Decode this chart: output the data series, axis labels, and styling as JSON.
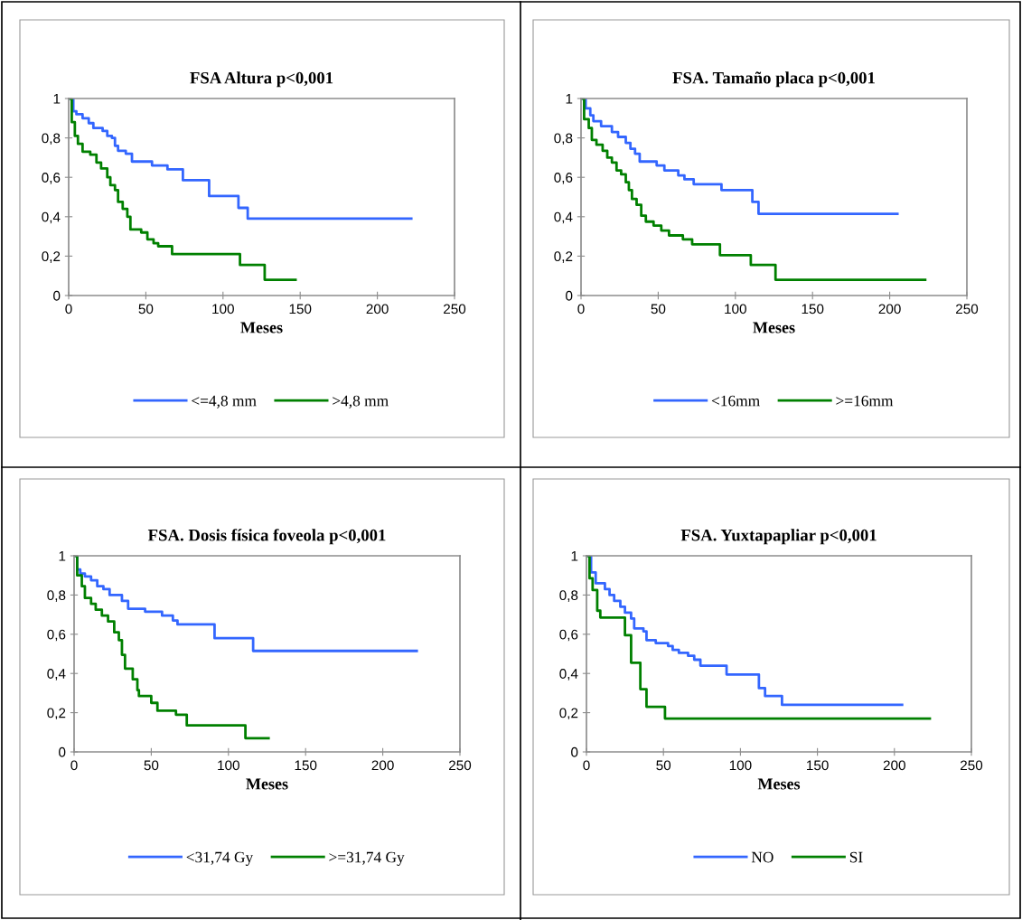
{
  "chart_data": [
    {
      "type": "step",
      "title": "FSA Altura p<0,001",
      "xlabel": "Meses",
      "legend": "bottom",
      "grid": false,
      "xlim": [
        0,
        250
      ],
      "xticks": [
        0,
        50,
        100,
        150,
        200,
        250
      ],
      "ylim": [
        0,
        1
      ],
      "yticks": [
        {
          "value": 0,
          "label": "0"
        },
        {
          "value": 0.2,
          "label": "0,2"
        },
        {
          "value": 0.4,
          "label": "0,4"
        },
        {
          "value": 0.6,
          "label": "0,6"
        },
        {
          "value": 0.8,
          "label": "0,8"
        },
        {
          "value": 1,
          "label": "1"
        }
      ],
      "series": [
        {
          "name": "<=4,8 mm",
          "color": "#3366ff",
          "x": [
            0,
            3,
            5,
            9,
            13,
            16,
            22,
            25,
            28,
            30,
            32,
            37,
            41,
            54,
            64,
            74,
            91,
            110,
            116,
            222
          ],
          "values": [
            1,
            0.935,
            0.92,
            0.9,
            0.875,
            0.85,
            0.835,
            0.81,
            0.8,
            0.76,
            0.735,
            0.72,
            0.68,
            0.66,
            0.64,
            0.585,
            0.505,
            0.445,
            0.39,
            0.39
          ]
        },
        {
          "name": ">4,8 mm",
          "color": "#008000",
          "x": [
            0,
            2,
            4,
            6,
            9,
            14,
            18,
            21,
            25,
            27,
            30,
            32,
            35,
            38,
            40,
            47,
            51,
            55,
            58,
            67,
            111,
            127,
            147
          ],
          "values": [
            1,
            0.88,
            0.81,
            0.77,
            0.73,
            0.715,
            0.675,
            0.645,
            0.6,
            0.56,
            0.535,
            0.475,
            0.44,
            0.4,
            0.335,
            0.32,
            0.285,
            0.265,
            0.25,
            0.21,
            0.155,
            0.08,
            0.08
          ]
        }
      ]
    },
    {
      "type": "step",
      "title": "FSA. Tamaño placa p<0,001",
      "xlabel": "Meses",
      "legend": "bottom",
      "grid": false,
      "xlim": [
        0,
        250
      ],
      "xticks": [
        0,
        50,
        100,
        150,
        200,
        250
      ],
      "ylim": [
        0,
        1
      ],
      "yticks": [
        {
          "value": 0,
          "label": "0"
        },
        {
          "value": 0.2,
          "label": "0,2"
        },
        {
          "value": 0.4,
          "label": "0,4"
        },
        {
          "value": 0.6,
          "label": "0,6"
        },
        {
          "value": 0.8,
          "label": "0,8"
        },
        {
          "value": 1,
          "label": "1"
        }
      ],
      "series": [
        {
          "name": "<16mm",
          "color": "#3366ff",
          "x": [
            0,
            3,
            6,
            8,
            13,
            20,
            24,
            29,
            32,
            35,
            38,
            49,
            54,
            63,
            67,
            73,
            91,
            111,
            115,
            205
          ],
          "values": [
            1,
            0.95,
            0.915,
            0.885,
            0.86,
            0.83,
            0.805,
            0.775,
            0.745,
            0.72,
            0.68,
            0.66,
            0.635,
            0.61,
            0.59,
            0.565,
            0.535,
            0.475,
            0.415,
            0.415
          ]
        },
        {
          "name": ">=16mm",
          "color": "#008000",
          "x": [
            0,
            2,
            5,
            7,
            10,
            14,
            17,
            20,
            23,
            26,
            29,
            31,
            33,
            36,
            39,
            42,
            47,
            52,
            57,
            66,
            72,
            90,
            110,
            126,
            223
          ],
          "values": [
            1,
            0.895,
            0.85,
            0.79,
            0.765,
            0.735,
            0.7,
            0.675,
            0.635,
            0.615,
            0.575,
            0.535,
            0.49,
            0.46,
            0.405,
            0.375,
            0.355,
            0.33,
            0.305,
            0.285,
            0.26,
            0.205,
            0.155,
            0.08,
            0.08
          ]
        }
      ]
    },
    {
      "type": "step",
      "title": "FSA. Dosis física foveola p<0,001",
      "xlabel": "Meses",
      "legend": "bottom",
      "grid": false,
      "xlim": [
        0,
        250
      ],
      "xticks": [
        0,
        50,
        100,
        150,
        200,
        250
      ],
      "ylim": [
        0,
        1
      ],
      "yticks": [
        {
          "value": 0,
          "label": "0"
        },
        {
          "value": 0.2,
          "label": "0,2"
        },
        {
          "value": 0.4,
          "label": "0,4"
        },
        {
          "value": 0.6,
          "label": "0,6"
        },
        {
          "value": 0.8,
          "label": "0,8"
        },
        {
          "value": 1,
          "label": "1"
        }
      ],
      "series": [
        {
          "name": "<31,74 Gy",
          "color": "#3366ff",
          "x": [
            0,
            2,
            4,
            7,
            11,
            15,
            19,
            23,
            31,
            35,
            46,
            57,
            64,
            67,
            91,
            116,
            222
          ],
          "values": [
            1,
            0.93,
            0.91,
            0.895,
            0.875,
            0.845,
            0.83,
            0.8,
            0.77,
            0.73,
            0.715,
            0.695,
            0.67,
            0.65,
            0.58,
            0.515,
            0.515
          ]
        },
        {
          "name": ">=31,74 Gy",
          "color": "#008000",
          "x": [
            0,
            2,
            5,
            7,
            11,
            14,
            18,
            22,
            26,
            29,
            31,
            33,
            38,
            41,
            42,
            50,
            54,
            66,
            73,
            111,
            126
          ],
          "values": [
            1,
            0.9,
            0.845,
            0.785,
            0.755,
            0.725,
            0.695,
            0.665,
            0.61,
            0.57,
            0.495,
            0.425,
            0.37,
            0.315,
            0.285,
            0.25,
            0.21,
            0.19,
            0.135,
            0.07,
            0.07
          ]
        }
      ]
    },
    {
      "type": "step",
      "title": "FSA. Yuxtapapliar p<0,001",
      "xlabel": "Meses",
      "legend": "bottom",
      "grid": false,
      "xlim": [
        0,
        250
      ],
      "xticks": [
        0,
        50,
        100,
        150,
        200,
        250
      ],
      "ylim": [
        0,
        1
      ],
      "yticks": [
        {
          "value": 0,
          "label": "0"
        },
        {
          "value": 0.2,
          "label": "0,2"
        },
        {
          "value": 0.4,
          "label": "0,4"
        },
        {
          "value": 0.6,
          "label": "0,6"
        },
        {
          "value": 0.8,
          "label": "0,8"
        },
        {
          "value": 1,
          "label": "1"
        }
      ],
      "series": [
        {
          "name": "NO",
          "color": "#3366ff",
          "x": [
            0,
            3,
            6,
            12,
            15,
            18,
            22,
            25,
            29,
            31,
            37,
            39,
            45,
            53,
            56,
            60,
            66,
            70,
            74,
            91,
            112,
            116,
            127,
            205
          ],
          "values": [
            1,
            0.915,
            0.86,
            0.83,
            0.8,
            0.77,
            0.74,
            0.71,
            0.68,
            0.63,
            0.615,
            0.57,
            0.555,
            0.54,
            0.52,
            0.505,
            0.49,
            0.47,
            0.44,
            0.395,
            0.325,
            0.285,
            0.24,
            0.24
          ]
        },
        {
          "name": "SI",
          "color": "#008000",
          "x": [
            0,
            2,
            4,
            7,
            9,
            25,
            29,
            35,
            39,
            51,
            223
          ],
          "values": [
            1,
            0.885,
            0.825,
            0.72,
            0.685,
            0.595,
            0.455,
            0.32,
            0.23,
            0.17,
            0.17
          ]
        }
      ]
    }
  ]
}
